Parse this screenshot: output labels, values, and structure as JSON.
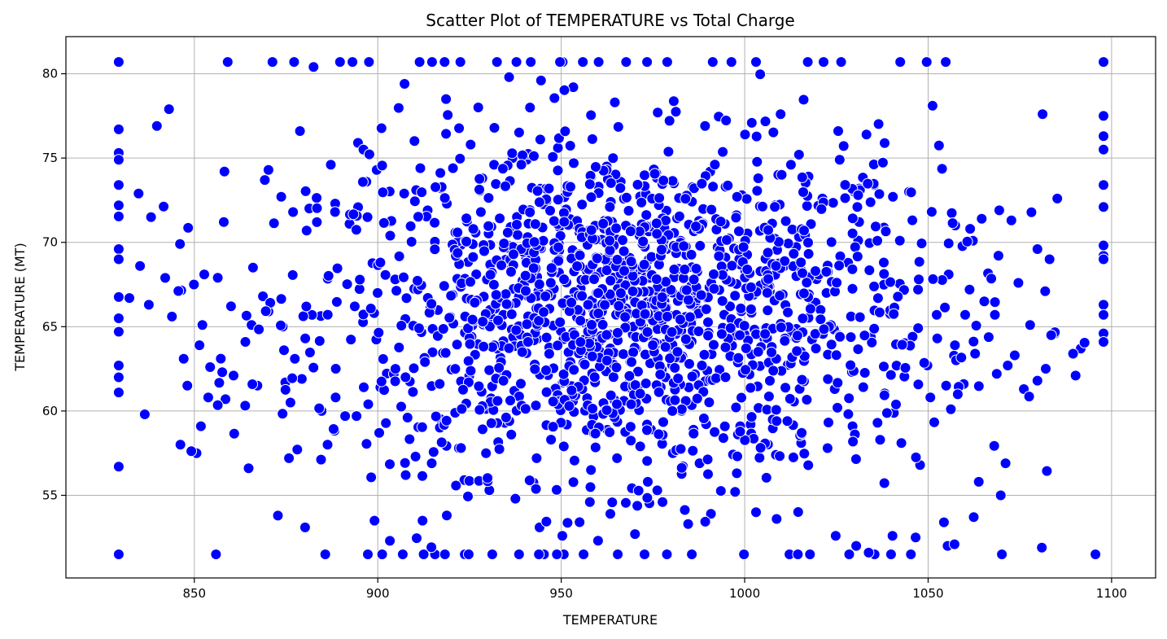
{
  "chart_data": {
    "type": "scatter",
    "title": "Scatter Plot of TEMPERATURE vs Total Charge",
    "xlabel": "TEMPERATURE",
    "ylabel": "TEMPERATURE (MT)",
    "xlim": [
      815,
      1112
    ],
    "ylim": [
      50.1,
      82.2
    ],
    "xticks": [
      850,
      900,
      950,
      1000,
      1050,
      1100
    ],
    "yticks": [
      55,
      60,
      65,
      70,
      75,
      80
    ],
    "grid": true,
    "marker_color": "#0000ff",
    "marker_edge_color": "#ffffff",
    "points": [
      [
        829.4,
        80.7
      ],
      [
        859.1,
        80.7
      ],
      [
        871.3,
        80.7
      ],
      [
        877.2,
        80.7
      ],
      [
        882.5,
        80.4
      ],
      [
        889.7,
        80.7
      ],
      [
        893.1,
        80.7
      ],
      [
        897.6,
        80.7
      ],
      [
        911.4,
        80.7
      ],
      [
        914.8,
        80.7
      ],
      [
        918.2,
        80.7
      ],
      [
        922.5,
        80.7
      ],
      [
        932.5,
        80.7
      ],
      [
        937.8,
        80.7
      ],
      [
        941.7,
        80.7
      ],
      [
        950.4,
        80.7
      ],
      [
        955.9,
        80.7
      ],
      [
        960.2,
        80.7
      ],
      [
        967.7,
        80.7
      ],
      [
        973.4,
        80.7
      ],
      [
        978.9,
        80.7
      ],
      [
        991.3,
        80.7
      ],
      [
        996.4,
        80.7
      ],
      [
        1003.1,
        80.7
      ],
      [
        1017.2,
        80.7
      ],
      [
        1021.5,
        80.7
      ],
      [
        1026.3,
        80.7
      ],
      [
        1042.4,
        80.7
      ],
      [
        1049.6,
        80.7
      ],
      [
        1054.8,
        80.7
      ],
      [
        1097.8,
        80.7
      ],
      [
        829.4,
        51.5
      ],
      [
        855.9,
        51.5
      ],
      [
        885.7,
        51.5
      ],
      [
        897.3,
        51.5
      ],
      [
        901.2,
        51.5
      ],
      [
        906.8,
        51.5
      ],
      [
        912.5,
        51.5
      ],
      [
        915.6,
        51.5
      ],
      [
        918.3,
        51.5
      ],
      [
        923.7,
        51.5
      ],
      [
        931.2,
        51.5
      ],
      [
        938.5,
        51.5
      ],
      [
        945.3,
        51.5
      ],
      [
        950.7,
        51.5
      ],
      [
        956.1,
        51.5
      ],
      [
        965.4,
        51.5
      ],
      [
        972.7,
        51.5
      ],
      [
        978.8,
        51.5
      ],
      [
        985.6,
        51.5
      ],
      [
        999.8,
        51.5
      ],
      [
        1012.2,
        51.5
      ],
      [
        1017.8,
        51.5
      ],
      [
        1028.5,
        51.5
      ],
      [
        1035.4,
        51.5
      ],
      [
        1039.9,
        51.5
      ],
      [
        1045.3,
        51.5
      ],
      [
        1070.1,
        51.5
      ],
      [
        1095.6,
        51.5
      ],
      [
        829.4,
        76.7
      ],
      [
        829.4,
        75.3
      ],
      [
        829.4,
        74.9
      ],
      [
        829.4,
        73.4
      ],
      [
        829.4,
        72.2
      ],
      [
        829.4,
        69.6
      ],
      [
        829.4,
        69.0
      ],
      [
        829.4,
        65.5
      ],
      [
        829.4,
        64.7
      ],
      [
        829.4,
        62.7
      ],
      [
        829.4,
        62.0
      ],
      [
        829.4,
        61.1
      ],
      [
        829.4,
        56.7
      ],
      [
        1097.8,
        77.5
      ],
      [
        1097.8,
        76.3
      ],
      [
        1097.8,
        75.5
      ],
      [
        1097.8,
        73.4
      ],
      [
        1097.8,
        72.1
      ],
      [
        1097.8,
        69.2
      ],
      [
        1097.8,
        69.0
      ],
      [
        1097.8,
        66.3
      ],
      [
        1097.8,
        65.7
      ],
      [
        1097.8,
        64.6
      ],
      [
        1097.8,
        64.1
      ],
      [
        843.1,
        77.9
      ],
      [
        839.8,
        76.9
      ],
      [
        858.2,
        74.2
      ],
      [
        834.8,
        72.9
      ],
      [
        838.2,
        71.5
      ],
      [
        846.1,
        69.9
      ],
      [
        852.7,
        68.1
      ],
      [
        856.4,
        67.9
      ],
      [
        849.9,
        67.5
      ],
      [
        832.3,
        66.7
      ],
      [
        835.2,
        68.6
      ],
      [
        837.6,
        66.3
      ],
      [
        843.9,
        65.6
      ],
      [
        852.2,
        65.1
      ],
      [
        851.4,
        63.9
      ],
      [
        847.1,
        63.1
      ],
      [
        848.1,
        61.5
      ],
      [
        854.3,
        62.6
      ],
      [
        857.6,
        62.3
      ],
      [
        860.7,
        62.1
      ],
      [
        868.7,
        66.8
      ],
      [
        866.0,
        68.5
      ],
      [
        869.2,
        73.7
      ],
      [
        873.7,
        72.7
      ],
      [
        876.9,
        71.8
      ],
      [
        880.6,
        70.7
      ],
      [
        883.4,
        71.2
      ],
      [
        888.4,
        72.3
      ],
      [
        892.3,
        71.1
      ],
      [
        894.6,
        75.9
      ],
      [
        896.9,
        73.6
      ],
      [
        899.7,
        74.3
      ],
      [
        903.4,
        70.4
      ],
      [
        907.2,
        72.9
      ],
      [
        911.6,
        74.4
      ],
      [
        913.6,
        71.9
      ],
      [
        917.3,
        73.2
      ],
      [
        920.5,
        74.4
      ],
      [
        925.3,
        75.8
      ],
      [
        928.5,
        73.8
      ],
      [
        931.7,
        74.6
      ],
      [
        936.7,
        75.0
      ],
      [
        940.6,
        74.9
      ],
      [
        944.3,
        76.1
      ],
      [
        949.1,
        75.6
      ],
      [
        953.4,
        74.7
      ],
      [
        958.2,
        73.9
      ],
      [
        962.4,
        74.5
      ],
      [
        966.2,
        73.6
      ],
      [
        971.3,
        72.7
      ],
      [
        975.9,
        74.1
      ],
      [
        980.7,
        73.5
      ],
      [
        985.5,
        72.4
      ],
      [
        990.6,
        74.2
      ],
      [
        994.8,
        73.3
      ],
      [
        999.2,
        72.8
      ],
      [
        1003.7,
        73.8
      ],
      [
        1008.3,
        72.2
      ],
      [
        1012.6,
        74.6
      ],
      [
        1017.4,
        73.9
      ],
      [
        1021.2,
        72.6
      ],
      [
        1025.9,
        74.9
      ],
      [
        1030.7,
        72.1
      ],
      [
        1035.3,
        73.4
      ],
      [
        1040.4,
        72.7
      ],
      [
        1044.8,
        73.0
      ],
      [
        1033.2,
        76.4
      ],
      [
        1025.5,
        76.6
      ],
      [
        1009.8,
        77.6
      ],
      [
        1000.1,
        76.4
      ],
      [
        989.2,
        76.9
      ],
      [
        976.3,
        77.7
      ],
      [
        964.6,
        78.3
      ],
      [
        953.3,
        79.2
      ],
      [
        944.5,
        79.6
      ],
      [
        935.8,
        79.8
      ],
      [
        927.4,
        78.0
      ],
      [
        918.6,
        78.5
      ],
      [
        907.3,
        79.4
      ],
      [
        896.1,
        75.5
      ],
      [
        887.2,
        74.6
      ],
      [
        878.8,
        76.6
      ],
      [
        870.2,
        74.3
      ],
      [
        1051.2,
        78.1
      ],
      [
        1057.4,
        71.0
      ],
      [
        1064.6,
        71.4
      ],
      [
        1072.7,
        71.3
      ],
      [
        1079.8,
        69.6
      ],
      [
        1085.2,
        72.6
      ],
      [
        1083.1,
        69.0
      ],
      [
        1069.4,
        71.9
      ],
      [
        1062.2,
        70.1
      ],
      [
        1055.6,
        68.1
      ],
      [
        1061.3,
        67.2
      ],
      [
        1065.3,
        66.5
      ],
      [
        1074.6,
        67.6
      ],
      [
        1081.9,
        67.1
      ],
      [
        1084.6,
        64.6
      ],
      [
        1077.8,
        65.1
      ],
      [
        1073.6,
        63.3
      ],
      [
        1071.7,
        62.7
      ],
      [
        1068.7,
        62.2
      ],
      [
        1076.1,
        61.3
      ],
      [
        1079.8,
        61.8
      ],
      [
        1091.6,
        63.7
      ],
      [
        1089.5,
        63.4
      ],
      [
        1090.2,
        62.1
      ],
      [
        1058.7,
        61.5
      ],
      [
        1054.9,
        61.5
      ],
      [
        1050.6,
        60.8
      ],
      [
        1056.2,
        60.1
      ],
      [
        1049.8,
        62.7
      ],
      [
        1052.5,
        64.3
      ],
      [
        1057.3,
        63.9
      ],
      [
        1062.8,
        63.4
      ],
      [
        1060.1,
        65.7
      ],
      [
        1068.2,
        65.7
      ],
      [
        1047.8,
        56.8
      ],
      [
        1042.7,
        58.1
      ],
      [
        1036.2,
        59.3
      ],
      [
        1029.4,
        59.1
      ],
      [
        1022.6,
        57.8
      ],
      [
        1015.4,
        58.1
      ],
      [
        1008.5,
        57.4
      ],
      [
        1001.6,
        59.2
      ],
      [
        994.2,
        58.4
      ],
      [
        987.7,
        56.9
      ],
      [
        980.4,
        57.5
      ],
      [
        973.6,
        55.8
      ],
      [
        965.2,
        57.2
      ],
      [
        958.1,
        56.5
      ],
      [
        950.7,
        57.9
      ],
      [
        943.3,
        57.2
      ],
      [
        936.4,
        58.6
      ],
      [
        929.5,
        57.5
      ],
      [
        922.1,
        57.8
      ],
      [
        914.7,
        56.9
      ],
      [
        907.6,
        56.2
      ],
      [
        900.4,
        58.7
      ],
      [
        1071.1,
        56.9
      ],
      [
        1069.8,
        55.0
      ],
      [
        1054.3,
        53.4
      ],
      [
        1055.3,
        52.0
      ],
      [
        1057.2,
        52.1
      ],
      [
        1046.6,
        52.5
      ],
      [
        1040.3,
        52.6
      ],
      [
        1033.8,
        51.6
      ],
      [
        1030.4,
        52.0
      ],
      [
        1024.8,
        52.6
      ],
      [
        1014.5,
        51.5
      ],
      [
        1008.7,
        53.6
      ],
      [
        1003.1,
        54.0
      ],
      [
        997.4,
        55.2
      ],
      [
        990.8,
        53.9
      ],
      [
        984.6,
        53.3
      ],
      [
        977.6,
        54.6
      ],
      [
        970.1,
        52.7
      ],
      [
        963.4,
        53.9
      ],
      [
        957.8,
        54.6
      ],
      [
        950.3,
        52.6
      ],
      [
        944.1,
        53.1
      ],
      [
        937.5,
        54.8
      ],
      [
        930.4,
        55.3
      ],
      [
        923.6,
        55.9
      ],
      [
        918.8,
        53.8
      ],
      [
        912.2,
        53.5
      ],
      [
        903.3,
        52.3
      ],
      [
        899.1,
        53.5
      ],
      [
        880.2,
        53.1
      ],
      [
        886.3,
        58.0
      ],
      [
        875.8,
        57.2
      ],
      [
        864.8,
        56.6
      ],
      [
        851.8,
        59.1
      ],
      [
        850.6,
        57.5
      ],
      [
        836.5,
        59.8
      ],
      [
        846.2,
        58.0
      ],
      [
        853.8,
        60.8
      ],
      [
        858.5,
        60.7
      ],
      [
        863.9,
        64.1
      ],
      [
        865.6,
        65.1
      ],
      [
        867.2,
        61.5
      ],
      [
        870.2,
        65.9
      ],
      [
        874.8,
        61.7
      ],
      [
        876.2,
        60.5
      ],
      [
        879.3,
        61.9
      ],
      [
        884.7,
        60.0
      ],
      [
        888.5,
        60.8
      ],
      [
        891.1,
        59.7
      ],
      [
        894.2,
        59.7
      ],
      [
        897.4,
        60.4
      ],
      [
        900.7,
        61.4
      ],
      [
        1081.2,
        77.6
      ],
      [
        1081.0,
        51.9
      ],
      [
        1059.7,
        61.6
      ],
      [
        1063.8,
        55.8
      ]
    ]
  }
}
